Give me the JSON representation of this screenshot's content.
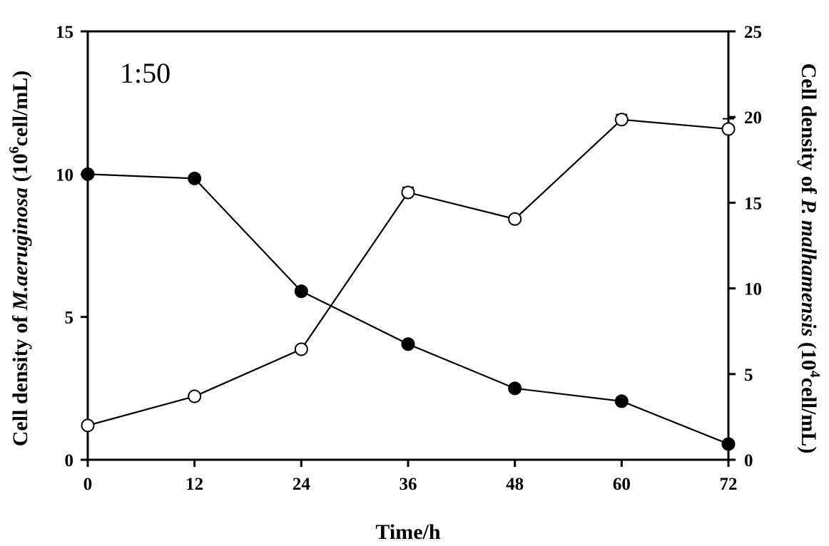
{
  "chart_data": {
    "type": "line",
    "title": "",
    "annotation": "1:50",
    "x": [
      0,
      12,
      24,
      36,
      48,
      60,
      72
    ],
    "xlabel": "Time/h",
    "xticks": [
      "0",
      "12",
      "24",
      "36",
      "48",
      "60",
      "72"
    ],
    "xlim": [
      0,
      72
    ],
    "ylabel_left": {
      "prefix": "Cell density of ",
      "species": "M.aeruginosa",
      "unit_open": " (10",
      "unit_sup": "6",
      "unit_close": "cell/mL)"
    },
    "ylabel_right": {
      "prefix": "Cell density of ",
      "species": "P. malhamensis",
      "unit_open": " (10",
      "unit_sup": "4",
      "unit_close": "cell/mL)"
    },
    "yticks_left": [
      "0",
      "5",
      "10",
      "15"
    ],
    "yticks_right": [
      "0",
      "5",
      "10",
      "15",
      "20",
      "25"
    ],
    "ylim_left": [
      0,
      15
    ],
    "ylim_right": [
      0,
      25
    ],
    "grid": false,
    "series": [
      {
        "marker": "filled-circle",
        "axis": "left",
        "values": [
          10.0,
          9.85,
          5.9,
          4.05,
          2.5,
          2.05,
          0.55
        ]
      },
      {
        "marker": "open-circle",
        "axis": "right",
        "values": [
          2.0,
          3.7,
          6.45,
          15.6,
          14.05,
          19.85,
          19.3
        ],
        "errors": [
          0,
          0,
          0,
          0.3,
          0,
          0.3,
          0.6
        ]
      }
    ]
  }
}
